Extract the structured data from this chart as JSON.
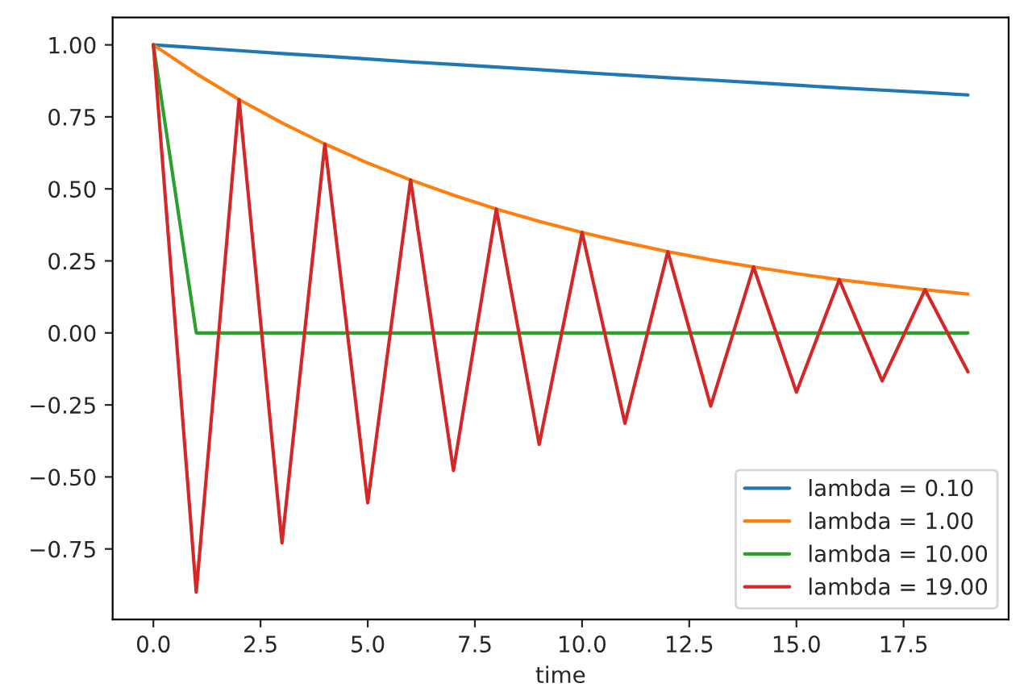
{
  "chart_data": {
    "type": "line",
    "xlabel": "time",
    "x": [
      0,
      1,
      2,
      3,
      4,
      5,
      6,
      7,
      8,
      9,
      10,
      11,
      12,
      13,
      14,
      15,
      16,
      17,
      18,
      19
    ],
    "series": [
      {
        "name": "lambda = 0.10",
        "color": "#1f77b4",
        "values": [
          1.0,
          0.99,
          0.98,
          0.97,
          0.961,
          0.951,
          0.941,
          0.932,
          0.923,
          0.914,
          0.904,
          0.895,
          0.886,
          0.878,
          0.869,
          0.86,
          0.851,
          0.843,
          0.835,
          0.826
        ]
      },
      {
        "name": "lambda = 1.00",
        "color": "#ff7f0e",
        "values": [
          1.0,
          0.9,
          0.81,
          0.729,
          0.656,
          0.59,
          0.531,
          0.478,
          0.43,
          0.387,
          0.349,
          0.314,
          0.282,
          0.254,
          0.229,
          0.206,
          0.185,
          0.167,
          0.15,
          0.135
        ]
      },
      {
        "name": "lambda = 10.00",
        "color": "#2ca02c",
        "values": [
          1.0,
          0,
          0,
          0,
          0,
          0,
          0,
          0,
          0,
          0,
          0,
          0,
          0,
          0,
          0,
          0,
          0,
          0,
          0,
          0
        ]
      },
      {
        "name": "lambda = 19.00",
        "color": "#d62728",
        "values": [
          1.0,
          -0.9,
          0.81,
          -0.729,
          0.656,
          -0.59,
          0.531,
          -0.478,
          0.43,
          -0.387,
          0.349,
          -0.314,
          0.282,
          -0.254,
          0.229,
          -0.206,
          0.185,
          -0.167,
          0.15,
          -0.135
        ]
      }
    ],
    "xlim": [
      -0.95,
      19.95
    ],
    "ylim": [
      -0.995,
      1.095
    ],
    "xticks": [
      {
        "value": 0,
        "label": "0.0"
      },
      {
        "value": 2.5,
        "label": "2.5"
      },
      {
        "value": 5,
        "label": "5.0"
      },
      {
        "value": 7.5,
        "label": "7.5"
      },
      {
        "value": 10,
        "label": "10.0"
      },
      {
        "value": 12.5,
        "label": "12.5"
      },
      {
        "value": 15,
        "label": "15.0"
      },
      {
        "value": 17.5,
        "label": "17.5"
      }
    ],
    "yticks": [
      {
        "value": -0.75,
        "label": "−0.75"
      },
      {
        "value": -0.5,
        "label": "−0.50"
      },
      {
        "value": -0.25,
        "label": "−0.25"
      },
      {
        "value": 0,
        "label": "0.00"
      },
      {
        "value": 0.25,
        "label": "0.25"
      },
      {
        "value": 0.5,
        "label": "0.50"
      },
      {
        "value": 0.75,
        "label": "0.75"
      },
      {
        "value": 1,
        "label": "1.00"
      }
    ],
    "grid": false,
    "legend": "lower right"
  }
}
